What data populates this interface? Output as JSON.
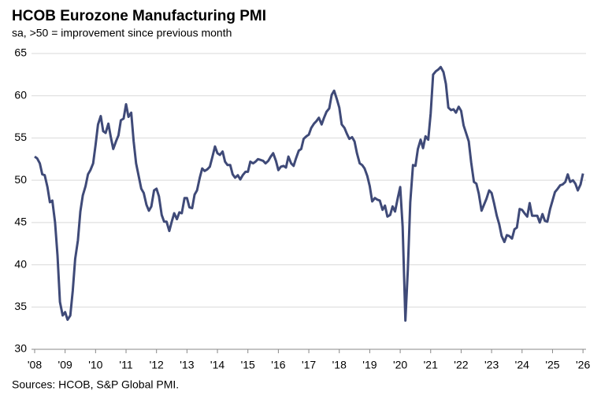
{
  "chart_data": {
    "type": "line",
    "title": "HCOB Eurozone Manufacturing PMI",
    "subtitle": "sa, >50 = improvement  since previous month",
    "source": "Sources: HCOB,  S&P Global  PMI.",
    "x": [
      2008.0,
      2008.08,
      2008.17,
      2008.25,
      2008.33,
      2008.42,
      2008.5,
      2008.58,
      2008.67,
      2008.75,
      2008.83,
      2008.92,
      2009.0,
      2009.08,
      2009.17,
      2009.25,
      2009.33,
      2009.42,
      2009.5,
      2009.58,
      2009.67,
      2009.75,
      2009.83,
      2009.92,
      2010.0,
      2010.08,
      2010.17,
      2010.25,
      2010.33,
      2010.42,
      2010.5,
      2010.58,
      2010.67,
      2010.75,
      2010.83,
      2010.92,
      2011.0,
      2011.08,
      2011.17,
      2011.25,
      2011.33,
      2011.42,
      2011.5,
      2011.58,
      2011.67,
      2011.75,
      2011.83,
      2011.92,
      2012.0,
      2012.08,
      2012.17,
      2012.25,
      2012.33,
      2012.42,
      2012.5,
      2012.58,
      2012.67,
      2012.75,
      2012.83,
      2012.92,
      2013.0,
      2013.08,
      2013.17,
      2013.25,
      2013.33,
      2013.42,
      2013.5,
      2013.58,
      2013.67,
      2013.75,
      2013.83,
      2013.92,
      2014.0,
      2014.08,
      2014.17,
      2014.25,
      2014.33,
      2014.42,
      2014.5,
      2014.58,
      2014.67,
      2014.75,
      2014.83,
      2014.92,
      2015.0,
      2015.08,
      2015.17,
      2015.25,
      2015.33,
      2015.42,
      2015.5,
      2015.58,
      2015.67,
      2015.75,
      2015.83,
      2015.92,
      2016.0,
      2016.08,
      2016.17,
      2016.25,
      2016.33,
      2016.42,
      2016.5,
      2016.58,
      2016.67,
      2016.75,
      2016.83,
      2016.92,
      2017.0,
      2017.08,
      2017.17,
      2017.25,
      2017.33,
      2017.42,
      2017.5,
      2017.58,
      2017.67,
      2017.75,
      2017.83,
      2017.92,
      2018.0,
      2018.08,
      2018.17,
      2018.25,
      2018.33,
      2018.42,
      2018.5,
      2018.58,
      2018.67,
      2018.75,
      2018.83,
      2018.92,
      2019.0,
      2019.08,
      2019.17,
      2019.25,
      2019.33,
      2019.42,
      2019.5,
      2019.58,
      2019.67,
      2019.75,
      2019.83,
      2019.92,
      2020.0,
      2020.08,
      2020.17,
      2020.25,
      2020.33,
      2020.42,
      2020.5,
      2020.58,
      2020.67,
      2020.75,
      2020.83,
      2020.92,
      2021.0,
      2021.08,
      2021.17,
      2021.25,
      2021.33,
      2021.42,
      2021.5,
      2021.58,
      2021.67,
      2021.75,
      2021.83,
      2021.92,
      2022.0,
      2022.08,
      2022.17,
      2022.25,
      2022.33,
      2022.42,
      2022.5,
      2022.58,
      2022.67,
      2022.75,
      2022.83,
      2022.92,
      2023.0,
      2023.08,
      2023.17,
      2023.25,
      2023.33,
      2023.42,
      2023.5,
      2023.58,
      2023.67,
      2023.75,
      2023.83,
      2023.92,
      2024.0,
      2024.08,
      2024.17,
      2024.25,
      2024.33,
      2024.42,
      2024.5,
      2024.58,
      2024.67,
      2024.75,
      2024.83,
      2024.92,
      2025.0,
      2025.08,
      2025.17,
      2025.25,
      2025.33,
      2025.42,
      2025.5,
      2025.58,
      2025.67,
      2025.75,
      2025.83,
      2025.92,
      2026.0
    ],
    "series": [
      {
        "color": "#3f4a78",
        "values": [
          52.8,
          52.6,
          52.0,
          50.7,
          50.6,
          49.2,
          47.4,
          47.6,
          45.0,
          41.1,
          35.6,
          34.0,
          34.4,
          33.5,
          34.0,
          36.9,
          40.7,
          42.9,
          46.3,
          48.2,
          49.3,
          50.7,
          51.2,
          52.0,
          54.2,
          56.6,
          57.6,
          55.8,
          55.6,
          56.7,
          55.1,
          53.7,
          54.6,
          55.3,
          57.1,
          57.3,
          59.0,
          57.5,
          58.0,
          54.6,
          52.0,
          50.4,
          49.0,
          48.5,
          47.1,
          46.4,
          46.9,
          48.8,
          49.0,
          48.1,
          45.9,
          45.1,
          45.1,
          44.0,
          45.1,
          46.1,
          45.4,
          46.2,
          46.1,
          47.9,
          47.9,
          46.8,
          46.7,
          48.3,
          48.8,
          50.3,
          51.4,
          51.1,
          51.3,
          51.6,
          52.7,
          54.0,
          53.2,
          53.0,
          53.4,
          52.2,
          51.8,
          51.8,
          50.7,
          50.3,
          50.6,
          50.1,
          50.6,
          51.0,
          51.0,
          52.2,
          52.0,
          52.2,
          52.5,
          52.4,
          52.3,
          52.0,
          52.3,
          52.8,
          53.2,
          52.3,
          51.2,
          51.6,
          51.7,
          51.5,
          52.8,
          52.0,
          51.7,
          52.6,
          53.5,
          53.7,
          54.9,
          55.2,
          55.4,
          56.2,
          56.7,
          57.0,
          57.4,
          56.6,
          57.4,
          58.1,
          58.5,
          60.1,
          60.6,
          59.6,
          58.6,
          56.6,
          56.2,
          55.5,
          54.9,
          55.1,
          54.6,
          53.2,
          52.0,
          51.8,
          51.4,
          50.5,
          49.3,
          47.5,
          47.9,
          47.7,
          47.6,
          46.5,
          47.0,
          45.7,
          45.9,
          46.9,
          46.3,
          47.9,
          49.2,
          44.5,
          33.4,
          39.4,
          47.4,
          51.8,
          51.7,
          53.7,
          54.8,
          53.8,
          55.2,
          54.8,
          57.9,
          62.5,
          62.9,
          63.1,
          63.4,
          62.8,
          61.4,
          58.6,
          58.3,
          58.4,
          58.0,
          58.7,
          58.2,
          56.5,
          55.5,
          54.6,
          52.1,
          49.8,
          49.6,
          48.4,
          46.4,
          47.1,
          47.8,
          48.8,
          48.5,
          47.3,
          45.8,
          44.8,
          43.4,
          42.7,
          43.5,
          43.4,
          43.1,
          44.2,
          44.4,
          46.6,
          46.5,
          46.1,
          45.7,
          47.3,
          45.8,
          45.8,
          45.8,
          45.0,
          46.0,
          45.2,
          45.1,
          46.6,
          47.6,
          48.6,
          49.0,
          49.4,
          49.5,
          49.8,
          50.7,
          49.8,
          50.0,
          49.6,
          48.8,
          49.5,
          50.8
        ]
      }
    ],
    "xlim": [
      2008,
      2026.1
    ],
    "xticks": [
      {
        "value": 2008,
        "label": "'08"
      },
      {
        "value": 2009,
        "label": "'09"
      },
      {
        "value": 2010,
        "label": "'10"
      },
      {
        "value": 2011,
        "label": "'11"
      },
      {
        "value": 2012,
        "label": "'12"
      },
      {
        "value": 2013,
        "label": "'13"
      },
      {
        "value": 2014,
        "label": "'14"
      },
      {
        "value": 2015,
        "label": "'15"
      },
      {
        "value": 2016,
        "label": "'16"
      },
      {
        "value": 2017,
        "label": "'17"
      },
      {
        "value": 2018,
        "label": "'18"
      },
      {
        "value": 2019,
        "label": "'19"
      },
      {
        "value": 2020,
        "label": "'20"
      },
      {
        "value": 2021,
        "label": "'21"
      },
      {
        "value": 2022,
        "label": "'22"
      },
      {
        "value": 2023,
        "label": "'23"
      },
      {
        "value": 2024,
        "label": "'24"
      },
      {
        "value": 2025,
        "label": "'25"
      },
      {
        "value": 2026,
        "label": "'26"
      }
    ],
    "ylim": [
      30,
      65
    ],
    "yticks": [
      30,
      35,
      40,
      45,
      50,
      55,
      60,
      65
    ],
    "grid": true
  }
}
